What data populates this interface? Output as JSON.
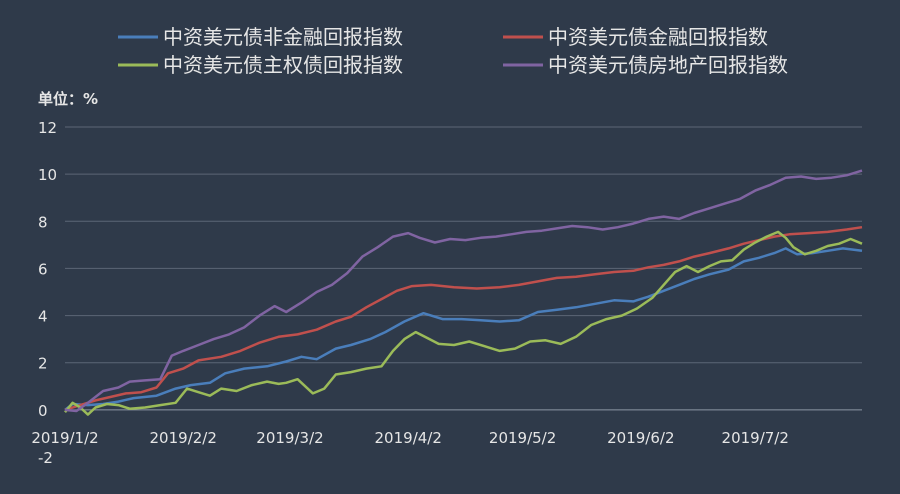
{
  "chart_data": {
    "type": "line",
    "unit_label": "单位：%",
    "x_ticks": [
      "2019/1/2",
      "2019/2/2",
      "2019/3/2",
      "2019/4/2",
      "2019/5/2",
      "2019/6/2",
      "2019/7/2"
    ],
    "y_ticks": [
      "-2",
      "0",
      "2",
      "4",
      "6",
      "8",
      "10",
      "12"
    ],
    "ylim": [
      -2,
      12
    ],
    "xlim": [
      "2019-01-02",
      "2019-07-30"
    ],
    "grid": "horizontal",
    "legend_position": "top",
    "series": [
      {
        "name": "中资美元债非金融回报指数",
        "color": "#4a7ebb",
        "points": [
          [
            "2019-01-02",
            0
          ],
          [
            "2019-01-04",
            0.25
          ],
          [
            "2019-01-08",
            0.2
          ],
          [
            "2019-01-12",
            0.25
          ],
          [
            "2019-01-16",
            0.35
          ],
          [
            "2019-01-20",
            0.5
          ],
          [
            "2019-01-26",
            0.6
          ],
          [
            "2019-01-31",
            0.9
          ],
          [
            "2019-02-04",
            1.05
          ],
          [
            "2019-02-09",
            1.15
          ],
          [
            "2019-02-13",
            1.55
          ],
          [
            "2019-02-18",
            1.75
          ],
          [
            "2019-02-24",
            1.85
          ],
          [
            "2019-03-01",
            2.05
          ],
          [
            "2019-03-05",
            2.25
          ],
          [
            "2019-03-09",
            2.15
          ],
          [
            "2019-03-14",
            2.6
          ],
          [
            "2019-03-18",
            2.75
          ],
          [
            "2019-03-23",
            3.0
          ],
          [
            "2019-03-27",
            3.3
          ],
          [
            "2019-04-01",
            3.75
          ],
          [
            "2019-04-06",
            4.1
          ],
          [
            "2019-04-11",
            3.85
          ],
          [
            "2019-04-16",
            3.85
          ],
          [
            "2019-04-21",
            3.8
          ],
          [
            "2019-04-26",
            3.75
          ],
          [
            "2019-05-01",
            3.8
          ],
          [
            "2019-05-06",
            4.15
          ],
          [
            "2019-05-11",
            4.25
          ],
          [
            "2019-05-16",
            4.35
          ],
          [
            "2019-05-21",
            4.5
          ],
          [
            "2019-05-26",
            4.65
          ],
          [
            "2019-05-31",
            4.6
          ],
          [
            "2019-06-04",
            4.8
          ],
          [
            "2019-06-08",
            5.05
          ],
          [
            "2019-06-12",
            5.3
          ],
          [
            "2019-06-16",
            5.55
          ],
          [
            "2019-06-20",
            5.75
          ],
          [
            "2019-06-25",
            5.95
          ],
          [
            "2019-06-29",
            6.3
          ],
          [
            "2019-07-03",
            6.45
          ],
          [
            "2019-07-07",
            6.65
          ],
          [
            "2019-07-10",
            6.85
          ],
          [
            "2019-07-13",
            6.6
          ],
          [
            "2019-07-17",
            6.65
          ],
          [
            "2019-07-21",
            6.75
          ],
          [
            "2019-07-25",
            6.85
          ],
          [
            "2019-07-30",
            6.75
          ]
        ]
      },
      {
        "name": "中资美元债金融回报指数",
        "color": "#c0504d",
        "points": [
          [
            "2019-01-02",
            0
          ],
          [
            "2019-01-06",
            0.2
          ],
          [
            "2019-01-10",
            0.4
          ],
          [
            "2019-01-14",
            0.55
          ],
          [
            "2019-01-18",
            0.7
          ],
          [
            "2019-01-22",
            0.75
          ],
          [
            "2019-01-26",
            0.95
          ],
          [
            "2019-01-29",
            1.55
          ],
          [
            "2019-02-02",
            1.75
          ],
          [
            "2019-02-06",
            2.1
          ],
          [
            "2019-02-12",
            2.25
          ],
          [
            "2019-02-17",
            2.5
          ],
          [
            "2019-02-22",
            2.85
          ],
          [
            "2019-02-27",
            3.1
          ],
          [
            "2019-03-04",
            3.2
          ],
          [
            "2019-03-09",
            3.4
          ],
          [
            "2019-03-14",
            3.75
          ],
          [
            "2019-03-18",
            3.95
          ],
          [
            "2019-03-22",
            4.35
          ],
          [
            "2019-03-26",
            4.7
          ],
          [
            "2019-03-30",
            5.05
          ],
          [
            "2019-04-03",
            5.25
          ],
          [
            "2019-04-08",
            5.3
          ],
          [
            "2019-04-14",
            5.2
          ],
          [
            "2019-04-20",
            5.15
          ],
          [
            "2019-04-26",
            5.2
          ],
          [
            "2019-05-01",
            5.3
          ],
          [
            "2019-05-06",
            5.45
          ],
          [
            "2019-05-11",
            5.6
          ],
          [
            "2019-05-16",
            5.65
          ],
          [
            "2019-05-21",
            5.75
          ],
          [
            "2019-05-26",
            5.85
          ],
          [
            "2019-05-31",
            5.9
          ],
          [
            "2019-06-04",
            6.05
          ],
          [
            "2019-06-08",
            6.15
          ],
          [
            "2019-06-12",
            6.3
          ],
          [
            "2019-06-16",
            6.5
          ],
          [
            "2019-06-20",
            6.65
          ],
          [
            "2019-06-25",
            6.85
          ],
          [
            "2019-06-29",
            7.05
          ],
          [
            "2019-07-03",
            7.2
          ],
          [
            "2019-07-07",
            7.35
          ],
          [
            "2019-07-11",
            7.45
          ],
          [
            "2019-07-16",
            7.5
          ],
          [
            "2019-07-21",
            7.55
          ],
          [
            "2019-07-26",
            7.65
          ],
          [
            "2019-07-30",
            7.75
          ]
        ]
      },
      {
        "name": "中资美元债主权债回报指数",
        "color": "#9bbb59",
        "points": [
          [
            "2019-01-02",
            -0.1
          ],
          [
            "2019-01-04",
            0.3
          ],
          [
            "2019-01-06",
            0.1
          ],
          [
            "2019-01-08",
            -0.2
          ],
          [
            "2019-01-10",
            0.1
          ],
          [
            "2019-01-13",
            0.25
          ],
          [
            "2019-01-16",
            0.2
          ],
          [
            "2019-01-19",
            0.05
          ],
          [
            "2019-01-23",
            0.1
          ],
          [
            "2019-01-27",
            0.2
          ],
          [
            "2019-01-31",
            0.3
          ],
          [
            "2019-02-03",
            0.9
          ],
          [
            "2019-02-06",
            0.75
          ],
          [
            "2019-02-09",
            0.6
          ],
          [
            "2019-02-12",
            0.9
          ],
          [
            "2019-02-16",
            0.8
          ],
          [
            "2019-02-20",
            1.05
          ],
          [
            "2019-02-24",
            1.2
          ],
          [
            "2019-02-27",
            1.1
          ],
          [
            "2019-03-01",
            1.15
          ],
          [
            "2019-03-04",
            1.3
          ],
          [
            "2019-03-08",
            0.7
          ],
          [
            "2019-03-11",
            0.9
          ],
          [
            "2019-03-14",
            1.5
          ],
          [
            "2019-03-18",
            1.6
          ],
          [
            "2019-03-22",
            1.75
          ],
          [
            "2019-03-26",
            1.85
          ],
          [
            "2019-03-29",
            2.5
          ],
          [
            "2019-04-01",
            3.0
          ],
          [
            "2019-04-04",
            3.3
          ],
          [
            "2019-04-07",
            3.05
          ],
          [
            "2019-04-10",
            2.8
          ],
          [
            "2019-04-14",
            2.75
          ],
          [
            "2019-04-18",
            2.9
          ],
          [
            "2019-04-22",
            2.7
          ],
          [
            "2019-04-26",
            2.5
          ],
          [
            "2019-04-30",
            2.6
          ],
          [
            "2019-05-04",
            2.9
          ],
          [
            "2019-05-08",
            2.95
          ],
          [
            "2019-05-12",
            2.8
          ],
          [
            "2019-05-16",
            3.1
          ],
          [
            "2019-05-20",
            3.6
          ],
          [
            "2019-05-24",
            3.85
          ],
          [
            "2019-05-28",
            4.0
          ],
          [
            "2019-06-01",
            4.3
          ],
          [
            "2019-06-05",
            4.75
          ],
          [
            "2019-06-08",
            5.3
          ],
          [
            "2019-06-11",
            5.85
          ],
          [
            "2019-06-14",
            6.1
          ],
          [
            "2019-06-17",
            5.85
          ],
          [
            "2019-06-20",
            6.1
          ],
          [
            "2019-06-23",
            6.3
          ],
          [
            "2019-06-26",
            6.35
          ],
          [
            "2019-06-29",
            6.8
          ],
          [
            "2019-07-02",
            7.1
          ],
          [
            "2019-07-05",
            7.35
          ],
          [
            "2019-07-08",
            7.55
          ],
          [
            "2019-07-10",
            7.3
          ],
          [
            "2019-07-12",
            6.9
          ],
          [
            "2019-07-15",
            6.6
          ],
          [
            "2019-07-18",
            6.75
          ],
          [
            "2019-07-21",
            6.95
          ],
          [
            "2019-07-24",
            7.05
          ],
          [
            "2019-07-27",
            7.25
          ],
          [
            "2019-07-30",
            7.05
          ]
        ]
      },
      {
        "name": "中资美元债房地产回报指数",
        "color": "#8064a2",
        "points": [
          [
            "2019-01-02",
            0
          ],
          [
            "2019-01-05",
            -0.05
          ],
          [
            "2019-01-08",
            0.3
          ],
          [
            "2019-01-12",
            0.8
          ],
          [
            "2019-01-16",
            0.95
          ],
          [
            "2019-01-19",
            1.2
          ],
          [
            "2019-01-23",
            1.25
          ],
          [
            "2019-01-27",
            1.3
          ],
          [
            "2019-01-30",
            2.3
          ],
          [
            "2019-02-02",
            2.5
          ],
          [
            "2019-02-06",
            2.75
          ],
          [
            "2019-02-10",
            3.0
          ],
          [
            "2019-02-14",
            3.2
          ],
          [
            "2019-02-18",
            3.5
          ],
          [
            "2019-02-22",
            4.0
          ],
          [
            "2019-02-26",
            4.4
          ],
          [
            "2019-03-01",
            4.15
          ],
          [
            "2019-03-05",
            4.55
          ],
          [
            "2019-03-09",
            5.0
          ],
          [
            "2019-03-13",
            5.3
          ],
          [
            "2019-03-17",
            5.8
          ],
          [
            "2019-03-21",
            6.5
          ],
          [
            "2019-03-25",
            6.9
          ],
          [
            "2019-03-29",
            7.35
          ],
          [
            "2019-04-02",
            7.5
          ],
          [
            "2019-04-05",
            7.3
          ],
          [
            "2019-04-09",
            7.1
          ],
          [
            "2019-04-13",
            7.25
          ],
          [
            "2019-04-17",
            7.2
          ],
          [
            "2019-04-21",
            7.3
          ],
          [
            "2019-04-25",
            7.35
          ],
          [
            "2019-04-29",
            7.45
          ],
          [
            "2019-05-03",
            7.55
          ],
          [
            "2019-05-07",
            7.6
          ],
          [
            "2019-05-11",
            7.7
          ],
          [
            "2019-05-15",
            7.8
          ],
          [
            "2019-05-19",
            7.75
          ],
          [
            "2019-05-23",
            7.65
          ],
          [
            "2019-05-27",
            7.75
          ],
          [
            "2019-05-31",
            7.9
          ],
          [
            "2019-06-04",
            8.1
          ],
          [
            "2019-06-08",
            8.2
          ],
          [
            "2019-06-12",
            8.1
          ],
          [
            "2019-06-16",
            8.35
          ],
          [
            "2019-06-20",
            8.55
          ],
          [
            "2019-06-24",
            8.75
          ],
          [
            "2019-06-28",
            8.95
          ],
          [
            "2019-07-02",
            9.3
          ],
          [
            "2019-07-06",
            9.55
          ],
          [
            "2019-07-10",
            9.85
          ],
          [
            "2019-07-14",
            9.9
          ],
          [
            "2019-07-18",
            9.8
          ],
          [
            "2019-07-22",
            9.85
          ],
          [
            "2019-07-26",
            9.95
          ],
          [
            "2019-07-30",
            10.15
          ]
        ]
      }
    ]
  }
}
